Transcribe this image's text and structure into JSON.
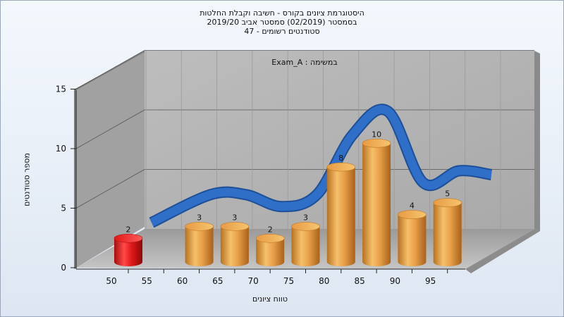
{
  "chart_data": {
    "type": "bar",
    "title_lines": [
      "היסטוגרמת ציונים בקורס - חשיבה וקבלת החלטות",
      "בסמסטר  (02/2019)  סמסטר אביב 2019/20",
      "סטודנטים רשומים - 47"
    ],
    "inner_label": "Exam_A : במשימה",
    "xlabel": "טווח ציונים",
    "ylabel": "מספר סטודנטים",
    "x_ticks": [
      "50",
      "55",
      "60",
      "65",
      "70",
      "75",
      "80",
      "85",
      "90",
      "95"
    ],
    "y_ticks": [
      0,
      5,
      10,
      15
    ],
    "ylim": [
      0,
      15
    ],
    "categories": [
      "50",
      "55",
      "60",
      "65",
      "70",
      "75",
      "80",
      "85",
      "90",
      "95"
    ],
    "values": [
      2,
      null,
      3,
      3,
      2,
      3,
      8,
      10,
      4,
      5
    ],
    "highlight_categories": [
      "50"
    ],
    "colors": {
      "normal_bar": "#e8a24a",
      "highlight_bar": "#e21a1a",
      "trend": "#2f6fc7"
    },
    "grid": true
  }
}
